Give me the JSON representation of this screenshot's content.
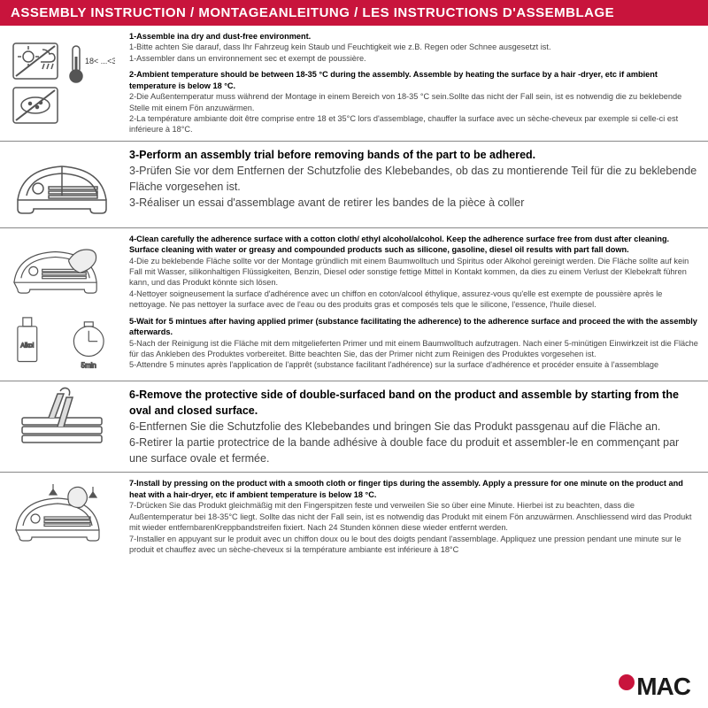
{
  "colors": {
    "header_bg": "#c8143c",
    "header_text": "#ffffff",
    "body_text": "#444444",
    "bold_text": "#000000",
    "border": "#888888",
    "logo_text": "#1a1a1a",
    "logo_dot": "#c8143c"
  },
  "header": "ASSEMBLY INSTRUCTION / MONTAGEANLEITUNG / LES INSTRUCTIONS D'ASSEMBLAGE",
  "sections": [
    {
      "blocks": [
        {
          "bold": "1-Assemble ina dry and dust-free environment.",
          "lines": [
            "1-Bitte achten Sie darauf, dass Ihr Fahrzeug kein Staub und Feuchtigkeit wie z.B. Regen oder Schnee ausgesetzt ist.",
            "1-Assembler dans un environnement sec et exempt de poussière."
          ]
        },
        {
          "bold": "2-Ambient temperature should be between 18-35 °C  during the assembly. Assemble by heating the surface by a hair -dryer, etc if ambient temperature is below 18 °C.",
          "lines": [
            "2-Die Außentemperatur muss während der Montage in einem Bereich von 18-35 °C  sein.Sollte das nicht der Fall sein, ist es notwendig die zu beklebende Stelle mit einem Fön anzuwärmen.",
            "2-La température ambiante doit être comprise entre 18 et 35°C lors d'assemblage, chauffer la surface avec un sèche-cheveux par exemple si celle-ci est inférieure à 18°C."
          ]
        }
      ]
    },
    {
      "blocks": [
        {
          "bold": "3-Perform an assembly trial before removing bands of the part to be adhered.",
          "lines": [
            "3-Prüfen Sie vor dem Entfernen der Schutzfolie des Klebebandes, ob das zu montierende Teil für die zu beklebende Fläche vorgesehen ist.",
            "3-Réaliser un essai d'assemblage avant de retirer les bandes de la pièce à coller"
          ],
          "large": true
        }
      ]
    },
    {
      "blocks": [
        {
          "bold": "4-Clean carefully the adherence surface with a cotton cloth/ ethyl alcohol/alcohol. Keep the adherence surface free from dust after cleaning. Surface cleaning with water or greasy and compounded products such as silicone, gasoline, diesel oil results with part fall down.",
          "lines": [
            "4-Die zu beklebende Fläche sollte vor der Montage gründlich mit einem Baumwolltuch und Spiritus oder Alkohol gereinigt werden. Die Fläche sollte auf kein Fall mit Wasser, silikonhaltigen Flüssigkeiten, Benzin, Diesel oder sonstige fettige Mittel in Kontakt kommen, da dies zu einem Verlust der Klebekraft führen kann, und das Produkt könnte sich lösen.",
            "4-Nettoyer soigneusement la surface d'adhérence avec un chiffon en coton/alcool éthylique, assurez-vous qu'elle est exempte de poussière après le nettoyage. Ne pas nettoyer la surface avec de l'eau ou des produits gras et composés tels que le silicone, l'essence, l'huile diesel."
          ]
        },
        {
          "bold": "5-Wait for 5 mintues after having applied primer (substance facilitating the adherence) to the adherence surface and proceed the with the assembly afterwards.",
          "lines": [
            "5-Nach der Reinigung ist die Fläche mit dem mitgelieferten Primer und mit einem Baumwolltuch aufzutragen. Nach einer 5-minütigen Einwirkzeit ist die Fläche für das Ankleben des Produktes vorbereitet. Bitte beachten Sie, das der Primer nicht zum Reinigen des Produktes vorgesehen ist.",
            "5-Attendre 5 minutes après l'application de l'apprêt (substance facilitant l'adhérence) sur la surface d'adhérence et procéder ensuite à l'assemblage"
          ]
        }
      ]
    },
    {
      "blocks": [
        {
          "bold": "6-Remove the protective side of double-surfaced band on the product and assemble by starting from the oval and closed surface.",
          "lines": [
            "6-Entfernen Sie die Schutzfolie des Klebebandes und bringen Sie das Produkt passgenau auf die Fläche an.",
            "6-Retirer la partie protectrice de la bande adhésive à double face du produit et assembler-le en commençant par une surface ovale et fermée."
          ],
          "large": true
        }
      ]
    },
    {
      "blocks": [
        {
          "bold": "7-Install by pressing on the product with a smooth cloth or finger tips during the assembly. Apply a pressure for one minute on the product and heat with a hair-dryer, etc if ambient temperature is below 18 °C.",
          "lines": [
            "7-Drücken Sie das Produkt gleichmäßig mit den Fingerspitzen feste und verweilen Sie so über eine Minute. Hierbei ist zu beachten, dass die Außentemperatur bei 18-35°C liegt. Sollte das nicht der Fall sein, ist es notwendig das Produkt mit einem Fön anzuwärmen. Anschliessend wird das Produkt mit wieder entfernbarenKreppbandstreifen fixiert. Nach 24 Stunden können diese wieder entfernt werden.",
            "7-Installer en appuyant sur le produit avec un chiffon doux ou le bout des doigts pendant l'assemblage. Appliquez une pression pendant une minute sur le produit et chauffez avec un sèche-cheveux si la température ambiante est inférieure à 18°C"
          ]
        }
      ]
    }
  ],
  "logo_text": "MAC"
}
